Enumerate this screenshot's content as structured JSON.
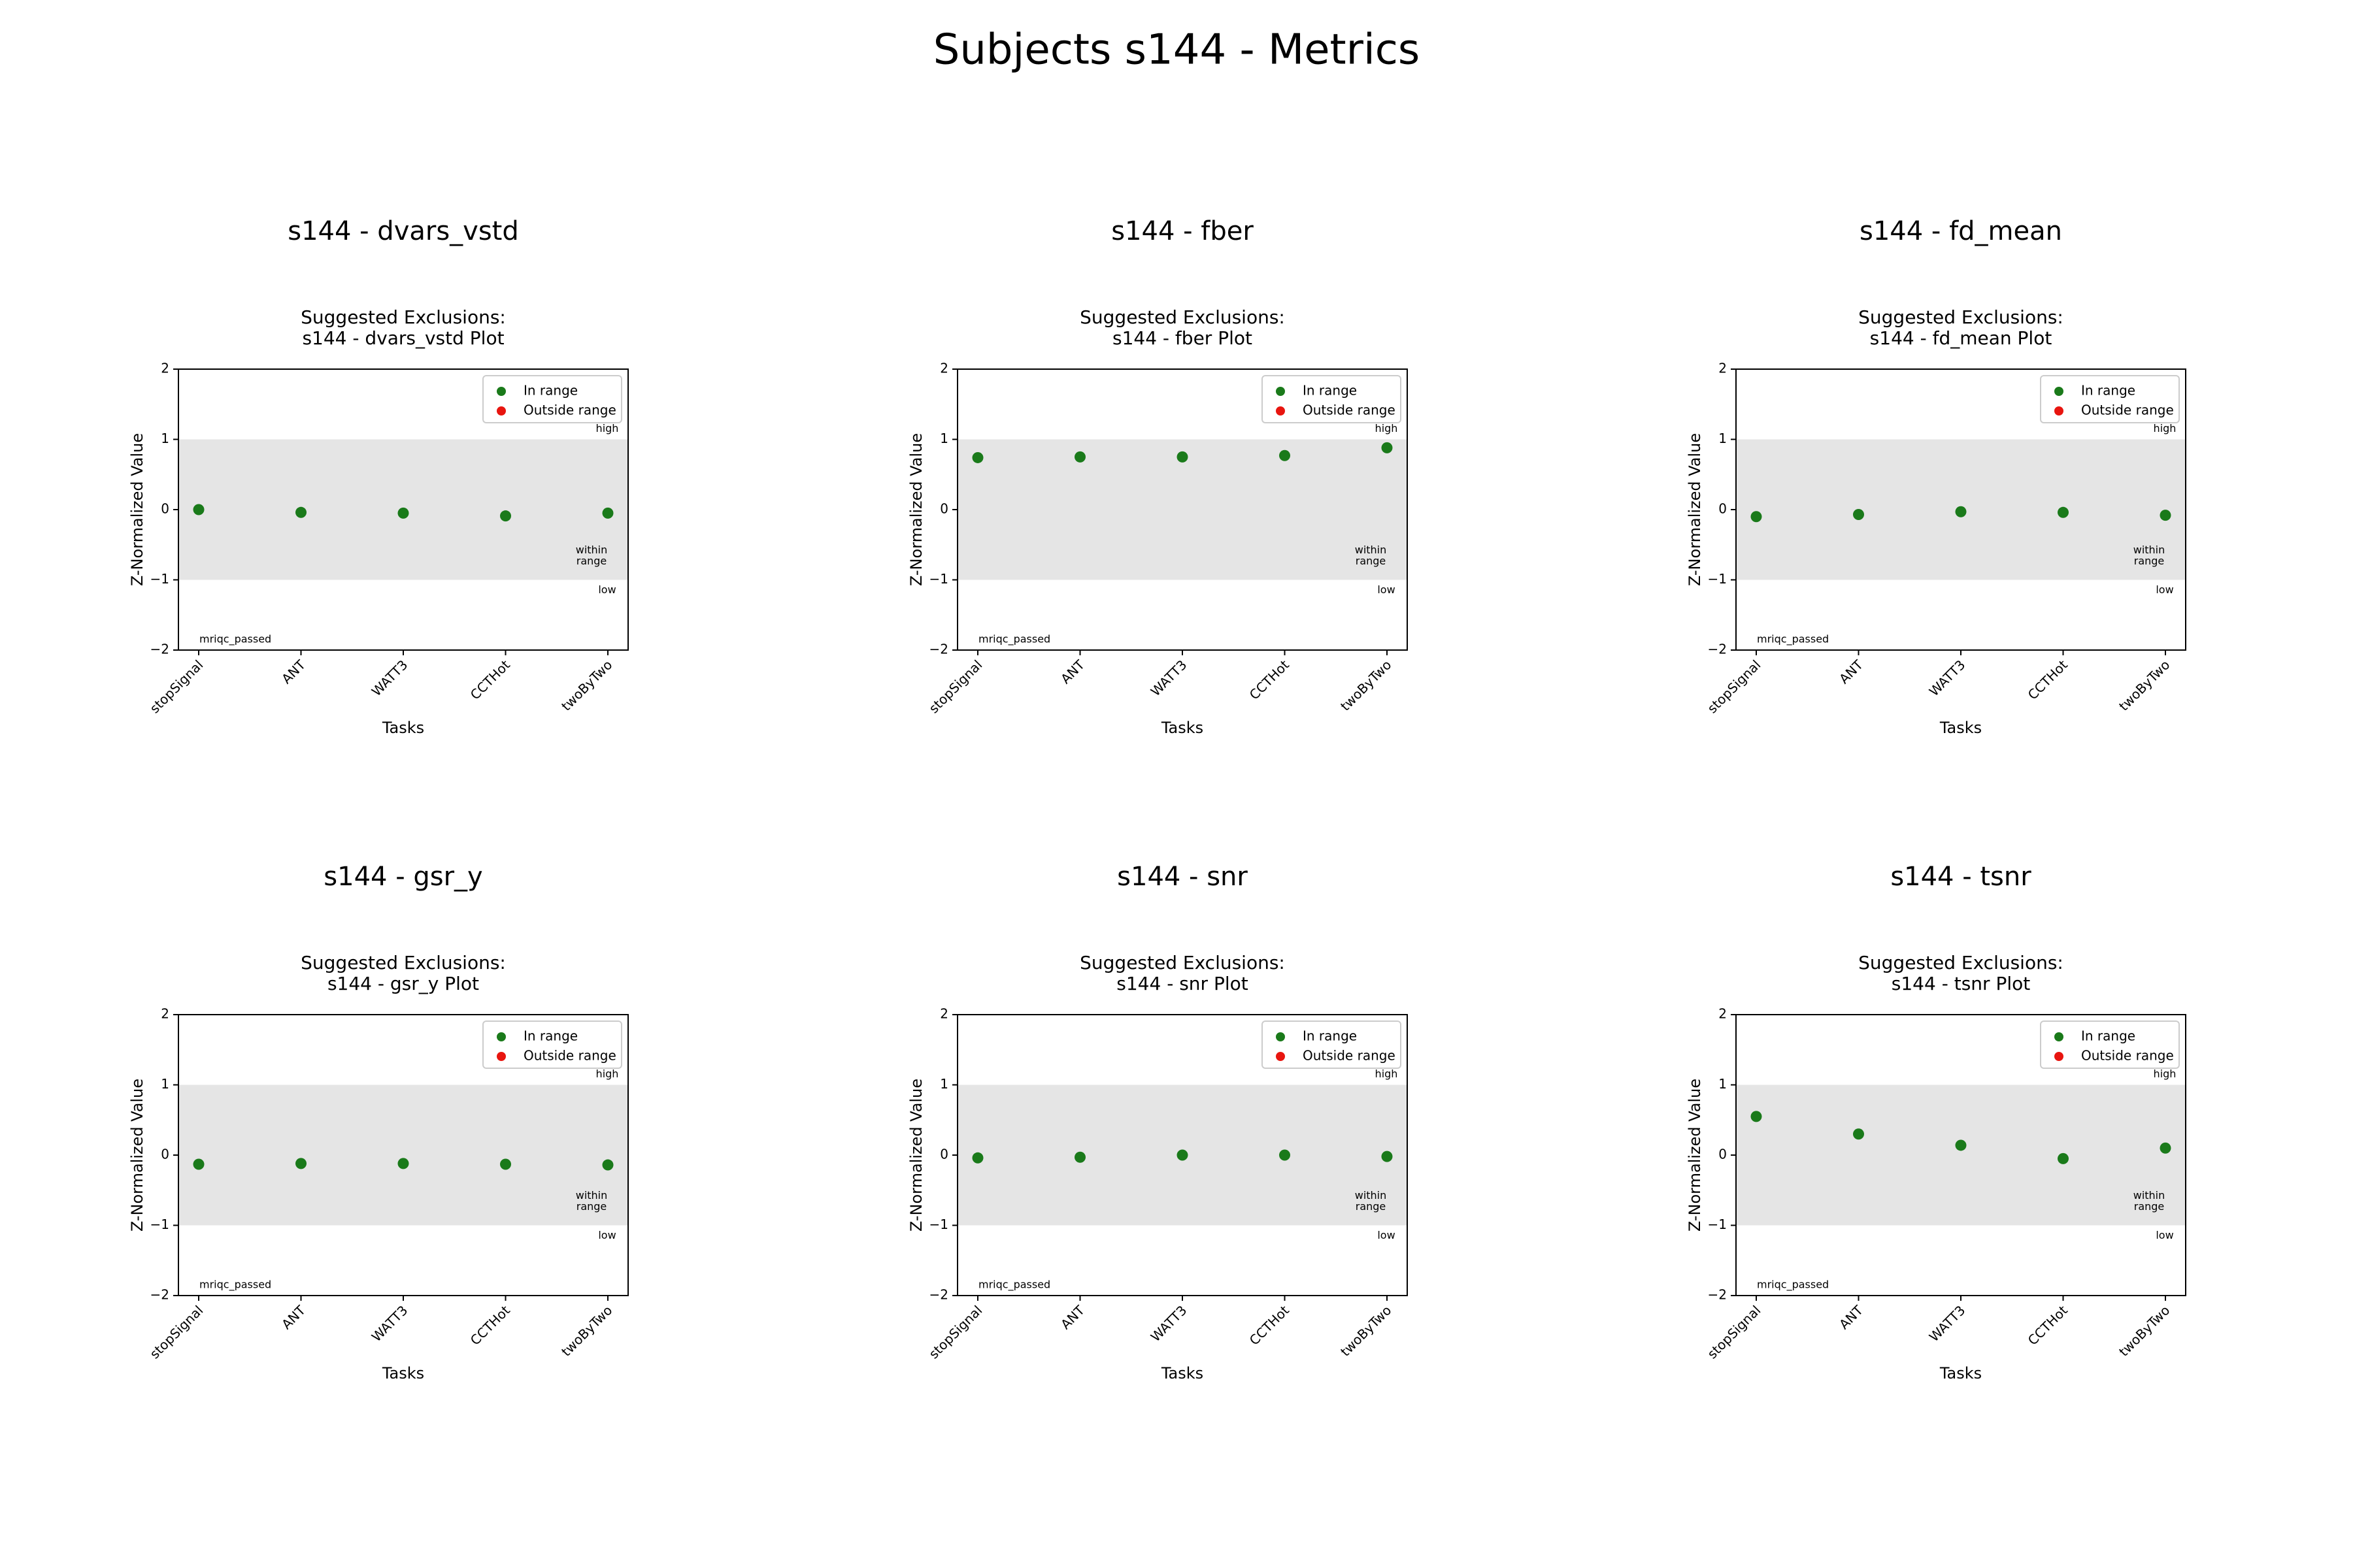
{
  "figure": {
    "suptitle": "Subjects s144 - Metrics"
  },
  "colors": {
    "in_range": "#1a7a1a",
    "outside_range": "#e8150f",
    "band": "#e5e5e5",
    "axis": "#000000"
  },
  "chart_data": [
    {
      "type": "scatter",
      "title": "s144 - dvars_vstd",
      "subtitle_lines": [
        "Suggested Exclusions:",
        "s144 - dvars_vstd Plot"
      ],
      "xlabel": "Tasks",
      "ylabel": "Z-Normalized Value",
      "categories": [
        "stopSignal",
        "ANT",
        "WATT3",
        "CCTHot",
        "twoByTwo"
      ],
      "series": [
        {
          "name": "In range",
          "values": [
            0.0,
            -0.04,
            -0.05,
            -0.09,
            -0.05
          ]
        },
        {
          "name": "Outside range",
          "values": []
        }
      ],
      "ylim": [
        -2,
        2
      ],
      "yticks": [
        "−2",
        "−1",
        "0",
        "1",
        "2"
      ],
      "band": [
        -1,
        1
      ],
      "annotations": {
        "high": "high",
        "within": [
          "within",
          "range"
        ],
        "low": "low",
        "status": "mriqc_passed"
      },
      "legend": {
        "position": "top-right",
        "entries": [
          "In range",
          "Outside range"
        ]
      },
      "grid": false
    },
    {
      "type": "scatter",
      "title": "s144 - fber",
      "subtitle_lines": [
        "Suggested Exclusions:",
        "s144 - fber Plot"
      ],
      "xlabel": "Tasks",
      "ylabel": "Z-Normalized Value",
      "categories": [
        "stopSignal",
        "ANT",
        "WATT3",
        "CCTHot",
        "twoByTwo"
      ],
      "series": [
        {
          "name": "In range",
          "values": [
            0.74,
            0.75,
            0.75,
            0.77,
            0.88
          ]
        },
        {
          "name": "Outside range",
          "values": []
        }
      ],
      "ylim": [
        -2,
        2
      ],
      "yticks": [
        "−2",
        "−1",
        "0",
        "1",
        "2"
      ],
      "band": [
        -1,
        1
      ],
      "annotations": {
        "high": "high",
        "within": [
          "within",
          "range"
        ],
        "low": "low",
        "status": "mriqc_passed"
      },
      "legend": {
        "position": "top-right",
        "entries": [
          "In range",
          "Outside range"
        ]
      },
      "grid": false
    },
    {
      "type": "scatter",
      "title": "s144 - fd_mean",
      "subtitle_lines": [
        "Suggested Exclusions:",
        "s144 - fd_mean Plot"
      ],
      "xlabel": "Tasks",
      "ylabel": "Z-Normalized Value",
      "categories": [
        "stopSignal",
        "ANT",
        "WATT3",
        "CCTHot",
        "twoByTwo"
      ],
      "series": [
        {
          "name": "In range",
          "values": [
            -0.1,
            -0.07,
            -0.03,
            -0.04,
            -0.08
          ]
        },
        {
          "name": "Outside range",
          "values": []
        }
      ],
      "ylim": [
        -2,
        2
      ],
      "yticks": [
        "−2",
        "−1",
        "0",
        "1",
        "2"
      ],
      "band": [
        -1,
        1
      ],
      "annotations": {
        "high": "high",
        "within": [
          "within",
          "range"
        ],
        "low": "low",
        "status": "mriqc_passed"
      },
      "legend": {
        "position": "top-right",
        "entries": [
          "In range",
          "Outside range"
        ]
      },
      "grid": false
    },
    {
      "type": "scatter",
      "title": "s144 - gsr_y",
      "subtitle_lines": [
        "Suggested Exclusions:",
        "s144 - gsr_y Plot"
      ],
      "xlabel": "Tasks",
      "ylabel": "Z-Normalized Value",
      "categories": [
        "stopSignal",
        "ANT",
        "WATT3",
        "CCTHot",
        "twoByTwo"
      ],
      "series": [
        {
          "name": "In range",
          "values": [
            -0.13,
            -0.12,
            -0.12,
            -0.13,
            -0.14
          ]
        },
        {
          "name": "Outside range",
          "values": []
        }
      ],
      "ylim": [
        -2,
        2
      ],
      "yticks": [
        "−2",
        "−1",
        "0",
        "1",
        "2"
      ],
      "band": [
        -1,
        1
      ],
      "annotations": {
        "high": "high",
        "within": [
          "within",
          "range"
        ],
        "low": "low",
        "status": "mriqc_passed"
      },
      "legend": {
        "position": "top-right",
        "entries": [
          "In range",
          "Outside range"
        ]
      },
      "grid": false
    },
    {
      "type": "scatter",
      "title": "s144 - snr",
      "subtitle_lines": [
        "Suggested Exclusions:",
        "s144 - snr Plot"
      ],
      "xlabel": "Tasks",
      "ylabel": "Z-Normalized Value",
      "categories": [
        "stopSignal",
        "ANT",
        "WATT3",
        "CCTHot",
        "twoByTwo"
      ],
      "series": [
        {
          "name": "In range",
          "values": [
            -0.04,
            -0.03,
            0.0,
            0.0,
            -0.02
          ]
        },
        {
          "name": "Outside range",
          "values": []
        }
      ],
      "ylim": [
        -2,
        2
      ],
      "yticks": [
        "−2",
        "−1",
        "0",
        "1",
        "2"
      ],
      "band": [
        -1,
        1
      ],
      "annotations": {
        "high": "high",
        "within": [
          "within",
          "range"
        ],
        "low": "low",
        "status": "mriqc_passed"
      },
      "legend": {
        "position": "top-right",
        "entries": [
          "In range",
          "Outside range"
        ]
      },
      "grid": false
    },
    {
      "type": "scatter",
      "title": "s144 - tsnr",
      "subtitle_lines": [
        "Suggested Exclusions:",
        "s144 - tsnr Plot"
      ],
      "xlabel": "Tasks",
      "ylabel": "Z-Normalized Value",
      "categories": [
        "stopSignal",
        "ANT",
        "WATT3",
        "CCTHot",
        "twoByTwo"
      ],
      "series": [
        {
          "name": "In range",
          "values": [
            0.55,
            0.3,
            0.14,
            -0.05,
            0.1
          ]
        },
        {
          "name": "Outside range",
          "values": []
        }
      ],
      "ylim": [
        -2,
        2
      ],
      "yticks": [
        "−2",
        "−1",
        "0",
        "1",
        "2"
      ],
      "band": [
        -1,
        1
      ],
      "annotations": {
        "high": "high",
        "within": [
          "within",
          "range"
        ],
        "low": "low",
        "status": "mriqc_passed"
      },
      "legend": {
        "position": "top-right",
        "entries": [
          "In range",
          "Outside range"
        ]
      },
      "grid": false
    }
  ]
}
